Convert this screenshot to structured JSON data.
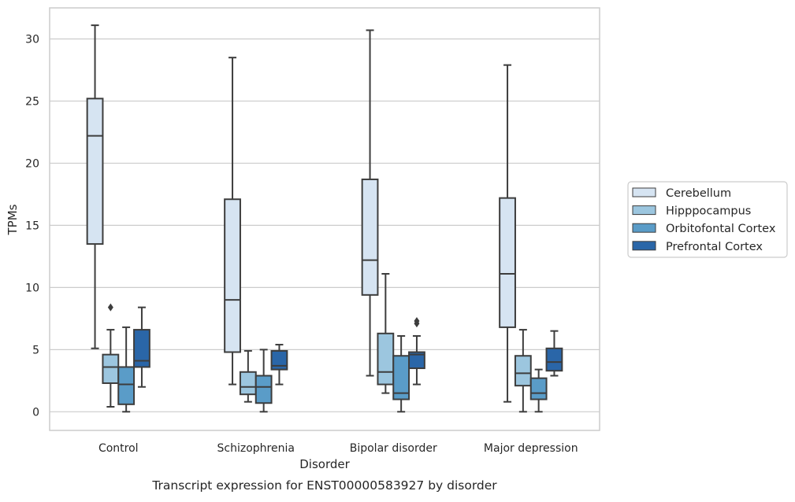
{
  "caption": "Transcript expression for ENST00000583927 by disorder",
  "chart_data": {
    "type": "box",
    "title": "",
    "xlabel": "Disorder",
    "ylabel": "TPMs",
    "categories": [
      "Control",
      "Schizophrenia",
      "Bipolar disorder",
      "Major depression"
    ],
    "ylim": [
      -1.5,
      32.5
    ],
    "yticks": [
      0,
      5,
      10,
      15,
      20,
      25,
      30
    ],
    "grid": "horizontal",
    "legend_position": "right",
    "series": [
      {
        "name": "Cerebellum",
        "color": "#d6e4f2",
        "boxes": [
          {
            "whisker_low": 5.1,
            "q1": 13.5,
            "median": 22.2,
            "q3": 25.2,
            "whisker_high": 31.1,
            "outliers": []
          },
          {
            "whisker_low": 2.2,
            "q1": 4.8,
            "median": 9.0,
            "q3": 17.1,
            "whisker_high": 28.5,
            "outliers": []
          },
          {
            "whisker_low": 2.9,
            "q1": 9.4,
            "median": 12.2,
            "q3": 18.7,
            "whisker_high": 30.7,
            "outliers": []
          },
          {
            "whisker_low": 0.8,
            "q1": 6.8,
            "median": 11.1,
            "q3": 17.2,
            "whisker_high": 27.9,
            "outliers": []
          }
        ]
      },
      {
        "name": "Hipppocampus",
        "color": "#9cc6df",
        "boxes": [
          {
            "whisker_low": 0.4,
            "q1": 2.3,
            "median": 3.6,
            "q3": 4.6,
            "whisker_high": 6.6,
            "outliers": [
              8.4
            ]
          },
          {
            "whisker_low": 0.8,
            "q1": 1.4,
            "median": 2.0,
            "q3": 3.2,
            "whisker_high": 4.9,
            "outliers": []
          },
          {
            "whisker_low": 1.5,
            "q1": 2.2,
            "median": 3.2,
            "q3": 6.3,
            "whisker_high": 11.1,
            "outliers": []
          },
          {
            "whisker_low": 0.0,
            "q1": 2.1,
            "median": 3.1,
            "q3": 4.5,
            "whisker_high": 6.6,
            "outliers": []
          }
        ]
      },
      {
        "name": "Orbitofontal Cortex",
        "color": "#5a9cc8",
        "boxes": [
          {
            "whisker_low": 0.0,
            "q1": 0.6,
            "median": 2.2,
            "q3": 3.6,
            "whisker_high": 6.8,
            "outliers": []
          },
          {
            "whisker_low": 0.0,
            "q1": 0.7,
            "median": 2.0,
            "q3": 2.9,
            "whisker_high": 5.0,
            "outliers": []
          },
          {
            "whisker_low": 0.0,
            "q1": 1.0,
            "median": 1.5,
            "q3": 4.5,
            "whisker_high": 6.1,
            "outliers": []
          },
          {
            "whisker_low": 0.0,
            "q1": 1.0,
            "median": 1.5,
            "q3": 2.7,
            "whisker_high": 3.4,
            "outliers": []
          }
        ]
      },
      {
        "name": "Prefrontal Cortex",
        "color": "#2a66a8",
        "boxes": [
          {
            "whisker_low": 2.0,
            "q1": 3.6,
            "median": 4.1,
            "q3": 6.6,
            "whisker_high": 8.4,
            "outliers": []
          },
          {
            "whisker_low": 2.2,
            "q1": 3.4,
            "median": 3.7,
            "q3": 4.9,
            "whisker_high": 5.4,
            "outliers": []
          },
          {
            "whisker_low": 2.2,
            "q1": 3.5,
            "median": 4.6,
            "q3": 4.8,
            "whisker_high": 6.1,
            "outliers": [
              7.1,
              7.3
            ]
          },
          {
            "whisker_low": 2.9,
            "q1": 3.3,
            "median": 4.0,
            "q3": 5.1,
            "whisker_high": 6.5,
            "outliers": []
          }
        ]
      }
    ]
  }
}
